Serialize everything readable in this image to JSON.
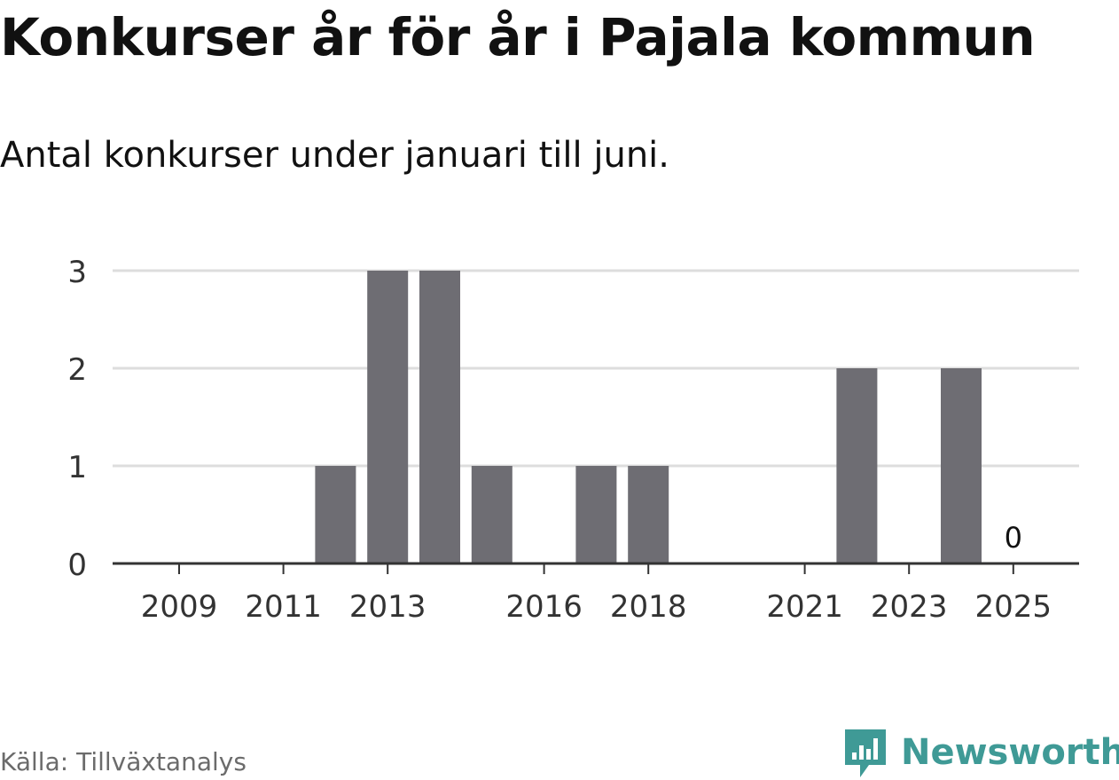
{
  "title": "Konkurser år för år i Pajala kommun",
  "subtitle": "Antal konkurser under januari till juni.",
  "source": "Källa: Tillväxtanalys",
  "brand": {
    "name": "Newsworthy",
    "icon": "newsworthy-logo-icon",
    "color": "#3f9a96"
  },
  "colors": {
    "bar": "#6e6d73",
    "grid": "#dddddd",
    "axis": "#333333",
    "text": "#111111"
  },
  "chart_data": {
    "type": "bar",
    "categories": [
      "2009",
      "2010",
      "2011",
      "2012",
      "2013",
      "2014",
      "2015",
      "2016",
      "2017",
      "2018",
      "2019",
      "2020",
      "2021",
      "2022",
      "2023",
      "2024",
      "2025"
    ],
    "values": [
      0,
      0,
      0,
      1,
      3,
      3,
      1,
      0,
      1,
      1,
      0,
      0,
      0,
      2,
      0,
      2,
      0
    ],
    "x_tick_labels": [
      "2009",
      "2011",
      "2013",
      "2016",
      "2018",
      "2021",
      "2023",
      "2025"
    ],
    "y_ticks": [
      "0",
      "1",
      "2",
      "3"
    ],
    "ylim": [
      0,
      3
    ],
    "data_labels": [
      {
        "category": "2025",
        "text": "0"
      }
    ],
    "grid": true,
    "legend": "none"
  }
}
